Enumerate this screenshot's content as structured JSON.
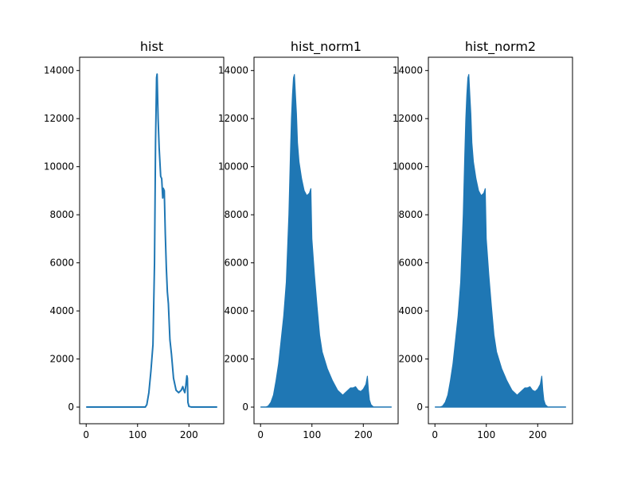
{
  "chart_data": [
    {
      "type": "line",
      "title": "hist",
      "xlabel": "",
      "ylabel": "",
      "xlim": [
        -12.75,
        267.75
      ],
      "ylim": [
        -693,
        14553
      ],
      "xticks": [
        0,
        100,
        200
      ],
      "yticks": [
        0,
        2000,
        4000,
        6000,
        8000,
        10000,
        12000,
        14000
      ],
      "color": "#1f77b4",
      "x": [
        0,
        100,
        115,
        118,
        122,
        126,
        130,
        133,
        135,
        137,
        138,
        140,
        142,
        145,
        147,
        149,
        150,
        152,
        154,
        156,
        158,
        160,
        163,
        166,
        170,
        175,
        180,
        185,
        188,
        190,
        192,
        194,
        196,
        197,
        198,
        200,
        205,
        210,
        255
      ],
      "y": [
        0,
        0,
        0,
        100,
        600,
        1500,
        2600,
        6000,
        11000,
        13700,
        13850,
        12000,
        10800,
        9600,
        9500,
        8700,
        9100,
        9000,
        7200,
        5800,
        4800,
        4300,
        2800,
        2200,
        1200,
        700,
        600,
        700,
        850,
        700,
        600,
        900,
        1300,
        1200,
        200,
        30,
        0,
        0,
        0
      ]
    },
    {
      "type": "area",
      "title": "hist_norm1",
      "xlabel": "",
      "ylabel": "",
      "xlim": [
        -12.75,
        267.75
      ],
      "ylim": [
        -693,
        14553
      ],
      "xticks": [
        0,
        100,
        200
      ],
      "yticks": [
        0,
        2000,
        4000,
        6000,
        8000,
        10000,
        12000,
        14000
      ],
      "color": "#1f77b4",
      "x": [
        0,
        10,
        15,
        20,
        25,
        30,
        35,
        40,
        45,
        50,
        55,
        58,
        60,
        62,
        64,
        66,
        68,
        70,
        72,
        75,
        80,
        85,
        90,
        95,
        98,
        100,
        105,
        110,
        115,
        120,
        130,
        140,
        150,
        160,
        165,
        170,
        175,
        180,
        185,
        190,
        195,
        200,
        205,
        208,
        210,
        212,
        215,
        220,
        255
      ],
      "y": [
        0,
        0,
        50,
        200,
        500,
        1100,
        1800,
        2800,
        3800,
        5200,
        8000,
        10500,
        12000,
        13000,
        13700,
        13850,
        13000,
        12200,
        11000,
        10200,
        9500,
        9000,
        8800,
        8900,
        9100,
        7000,
        5500,
        4200,
        3000,
        2300,
        1600,
        1100,
        700,
        500,
        600,
        700,
        800,
        800,
        850,
        700,
        650,
        750,
        950,
        1300,
        700,
        300,
        100,
        0,
        0
      ]
    },
    {
      "type": "area",
      "title": "hist_norm2",
      "xlabel": "",
      "ylabel": "",
      "xlim": [
        -12.75,
        267.75
      ],
      "ylim": [
        -693,
        14553
      ],
      "xticks": [
        0,
        100,
        200
      ],
      "yticks": [
        0,
        2000,
        4000,
        6000,
        8000,
        10000,
        12000,
        14000
      ],
      "color": "#1f77b4",
      "x": [
        0,
        10,
        15,
        20,
        25,
        30,
        35,
        40,
        45,
        50,
        55,
        58,
        60,
        62,
        64,
        66,
        68,
        70,
        72,
        75,
        80,
        85,
        90,
        95,
        98,
        100,
        105,
        110,
        115,
        120,
        130,
        140,
        150,
        160,
        165,
        170,
        175,
        180,
        185,
        190,
        195,
        200,
        205,
        208,
        210,
        212,
        215,
        220,
        255
      ],
      "y": [
        0,
        0,
        50,
        200,
        500,
        1100,
        1800,
        2800,
        3800,
        5200,
        8000,
        10500,
        12000,
        13000,
        13700,
        13850,
        13000,
        12200,
        11000,
        10200,
        9500,
        9000,
        8800,
        8900,
        9100,
        7000,
        5500,
        4200,
        3000,
        2300,
        1600,
        1100,
        700,
        500,
        600,
        700,
        800,
        800,
        850,
        700,
        650,
        750,
        950,
        1300,
        700,
        300,
        100,
        0,
        0
      ]
    }
  ]
}
